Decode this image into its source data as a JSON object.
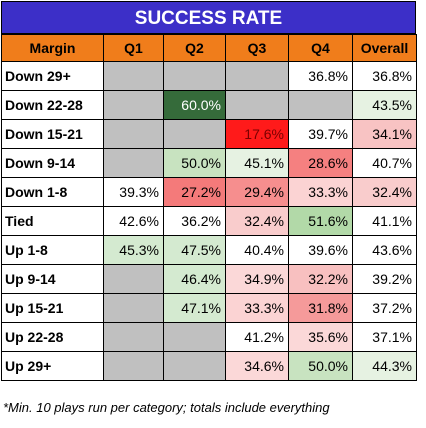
{
  "title": "SUCCESS RATE",
  "columns": [
    "Margin",
    "Q1",
    "Q2",
    "Q3",
    "Q4",
    "Overall"
  ],
  "rows": [
    {
      "label": "Down 29+",
      "cells": [
        {
          "v": "",
          "bg": "#c0c0c0"
        },
        {
          "v": "",
          "bg": "#c0c0c0"
        },
        {
          "v": "",
          "bg": "#c0c0c0"
        },
        {
          "v": "36.8%",
          "bg": "#ffffff"
        },
        {
          "v": "36.8%",
          "bg": "#ffffff"
        }
      ]
    },
    {
      "label": "Down 22-28",
      "cells": [
        {
          "v": "",
          "bg": "#c0c0c0"
        },
        {
          "v": "60.0%",
          "bg": "#356b3a",
          "fg": "#ffffff"
        },
        {
          "v": "",
          "bg": "#c0c0c0"
        },
        {
          "v": "",
          "bg": "#c0c0c0"
        },
        {
          "v": "43.5%",
          "bg": "#e6f2e2"
        }
      ]
    },
    {
      "label": "Down 15-21",
      "cells": [
        {
          "v": "",
          "bg": "#c0c0c0"
        },
        {
          "v": "",
          "bg": "#c0c0c0"
        },
        {
          "v": "17.6%",
          "bg": "#ff1a1a",
          "fg": "#7a0000"
        },
        {
          "v": "39.7%",
          "bg": "#ffffff"
        },
        {
          "v": "34.1%",
          "bg": "#f8c3c3"
        }
      ]
    },
    {
      "label": "Down 9-14",
      "cells": [
        {
          "v": "",
          "bg": "#c0c0c0"
        },
        {
          "v": "50.0%",
          "bg": "#c8e3c0"
        },
        {
          "v": "45.1%",
          "bg": "#e6f2e2"
        },
        {
          "v": "28.6%",
          "bg": "#f58080"
        },
        {
          "v": "40.7%",
          "bg": "#ffffff"
        }
      ]
    },
    {
      "label": "Down 1-8",
      "cells": [
        {
          "v": "39.3%",
          "bg": "#ffffff"
        },
        {
          "v": "27.2%",
          "bg": "#f47a7a"
        },
        {
          "v": "29.4%",
          "bg": "#f68e8e"
        },
        {
          "v": "33.3%",
          "bg": "#fbd3d3"
        },
        {
          "v": "32.4%",
          "bg": "#f9cccc"
        }
      ]
    },
    {
      "label": "Tied",
      "cells": [
        {
          "v": "42.6%",
          "bg": "#ffffff"
        },
        {
          "v": "36.2%",
          "bg": "#ffffff"
        },
        {
          "v": "32.4%",
          "bg": "#f9cccc"
        },
        {
          "v": "51.6%",
          "bg": "#b2d9a8"
        },
        {
          "v": "41.1%",
          "bg": "#ffffff"
        }
      ]
    },
    {
      "label": "Up 1-8",
      "cells": [
        {
          "v": "45.3%",
          "bg": "#d4ead0"
        },
        {
          "v": "47.5%",
          "bg": "#d4ead0"
        },
        {
          "v": "40.4%",
          "bg": "#ffffff"
        },
        {
          "v": "39.6%",
          "bg": "#ffffff"
        },
        {
          "v": "43.6%",
          "bg": "#ffffff"
        }
      ]
    },
    {
      "label": "Up 9-14",
      "cells": [
        {
          "v": "",
          "bg": "#c0c0c0"
        },
        {
          "v": "46.4%",
          "bg": "#d4ead0"
        },
        {
          "v": "34.9%",
          "bg": "#fbd8d8"
        },
        {
          "v": "32.2%",
          "bg": "#f8c0c0"
        },
        {
          "v": "39.2%",
          "bg": "#ffffff"
        }
      ]
    },
    {
      "label": "Up 15-21",
      "cells": [
        {
          "v": "",
          "bg": "#c0c0c0"
        },
        {
          "v": "47.1%",
          "bg": "#d4ead0"
        },
        {
          "v": "33.3%",
          "bg": "#fbd3d3"
        },
        {
          "v": "31.8%",
          "bg": "#f59a9a"
        },
        {
          "v": "37.2%",
          "bg": "#ffffff"
        }
      ]
    },
    {
      "label": "Up 22-28",
      "cells": [
        {
          "v": "",
          "bg": "#c0c0c0"
        },
        {
          "v": "",
          "bg": "#c0c0c0"
        },
        {
          "v": "41.2%",
          "bg": "#ffffff"
        },
        {
          "v": "35.6%",
          "bg": "#fbd8d8"
        },
        {
          "v": "37.1%",
          "bg": "#ffffff"
        }
      ]
    },
    {
      "label": "Up 29+",
      "cells": [
        {
          "v": "",
          "bg": "#c0c0c0"
        },
        {
          "v": "",
          "bg": "#c0c0c0"
        },
        {
          "v": "34.6%",
          "bg": "#fbd8d8"
        },
        {
          "v": "50.0%",
          "bg": "#c8e3c0"
        },
        {
          "v": "44.3%",
          "bg": "#e6f2e2"
        }
      ]
    }
  ],
  "footnote": "*Min. 10 plays run per category; totals include everything",
  "colors": {
    "title_bg": "#3c2fc8",
    "header_bg": "#f07d1b",
    "empty_cell": "#c0c0c0"
  }
}
